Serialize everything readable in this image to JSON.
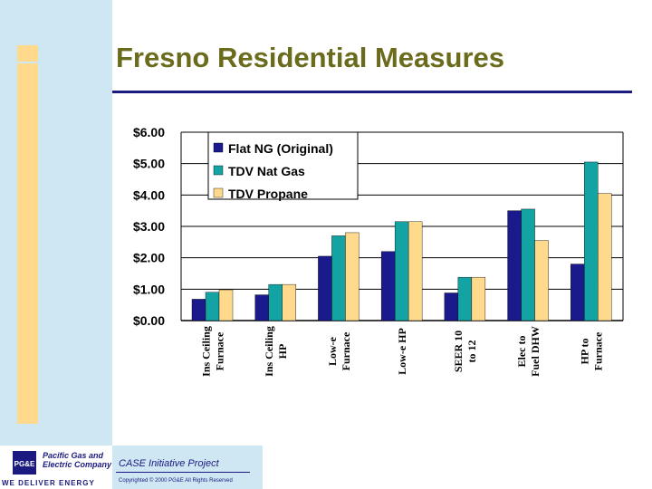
{
  "slide": {
    "title": "Fresno Residential Measures"
  },
  "footer": {
    "logo_line1": "Pacific Gas and",
    "logo_line2": "Electric Company",
    "logo_tagline": "WE DELIVER ENERGY",
    "logo_mark": "PG&E",
    "project": "CASE Initiative Project",
    "copyright": "Copyrighted © 2000 PG&E All Rights Reserved"
  },
  "colors": {
    "left_band": "#cfe7f3",
    "accent": "#ffd98c",
    "title": "#6b6b1d",
    "rule": "#1a1a80"
  },
  "chart_data": {
    "type": "bar",
    "title": "",
    "xlabel": "",
    "ylabel": "",
    "ylim": [
      0,
      6
    ],
    "grid": true,
    "legend": "top-left",
    "y_ticks": [
      "$0.00",
      "$1.00",
      "$2.00",
      "$3.00",
      "$4.00",
      "$5.00",
      "$6.00"
    ],
    "categories": [
      [
        "Ins Ceiling",
        "Furnace"
      ],
      [
        "Ins Ceiling",
        "HP"
      ],
      [
        "Low-e",
        "Furnace"
      ],
      [
        "Low-e HP"
      ],
      [
        "SEER 10",
        "to 12"
      ],
      [
        "Elec to",
        "Fuel DHW"
      ],
      [
        "HP to",
        "Furnace"
      ]
    ],
    "series": [
      {
        "name": "Flat NG (Original)",
        "color": "#1a1a8c",
        "values": [
          0.68,
          0.82,
          2.05,
          2.2,
          0.88,
          3.5,
          1.8
        ]
      },
      {
        "name": "TDV Nat Gas",
        "color": "#14a3a3",
        "values": [
          0.9,
          1.15,
          2.7,
          3.15,
          1.38,
          3.55,
          5.05
        ]
      },
      {
        "name": "TDV Propane",
        "color": "#ffd98c",
        "values": [
          0.98,
          1.15,
          2.8,
          3.15,
          1.38,
          2.55,
          4.05
        ]
      }
    ]
  }
}
